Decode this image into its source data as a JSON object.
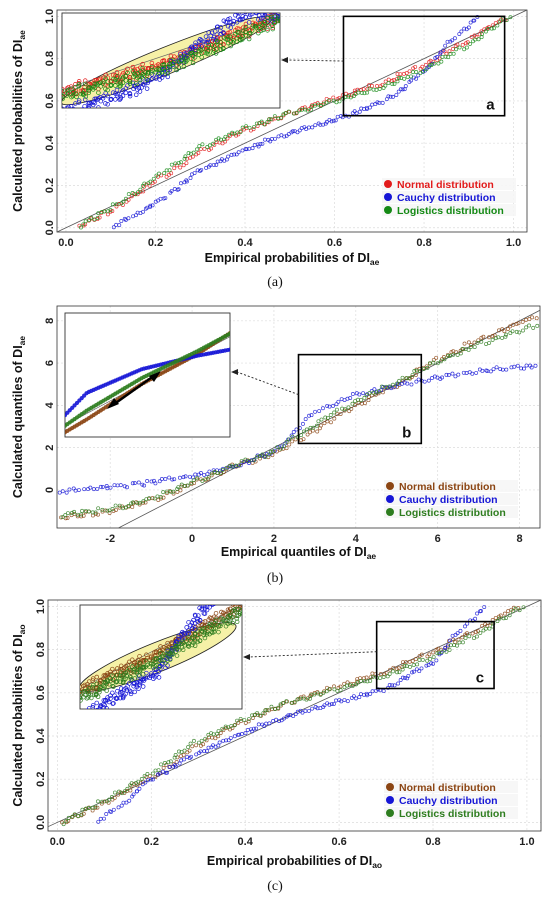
{
  "chart_data": [
    {
      "id": "a",
      "type": "scatter",
      "caption": "(a)",
      "xlabel_main": "Empirical probabilities of DI",
      "xlabel_sub": "ae",
      "ylabel_main": "Calculated probabilities of DI",
      "ylabel_sub": "ae",
      "xlim": [
        -0.02,
        1.03
      ],
      "ylim": [
        -0.02,
        1.03
      ],
      "xticks": [
        "0.0",
        "0.2",
        "0.4",
        "0.6",
        "0.8",
        "1.0"
      ],
      "yticks": [
        "0.0",
        "0.2",
        "0.4",
        "0.6",
        "0.8",
        "1.0"
      ],
      "reference_line": [
        [
          -0.02,
          -0.02
        ],
        [
          1.03,
          1.03
        ]
      ],
      "zoom_label": "a",
      "zoom_box": {
        "x": [
          0.62,
          0.98
        ],
        "y": [
          0.53,
          1.0
        ]
      },
      "grid": true,
      "legend_position": "bottom-right",
      "series": [
        {
          "name": "Normal distribution",
          "color": "#e21b1b",
          "x": [
            0.03,
            0.1,
            0.2,
            0.3,
            0.4,
            0.5,
            0.6,
            0.7,
            0.8,
            0.9,
            0.98
          ],
          "y": [
            0.01,
            0.08,
            0.22,
            0.36,
            0.46,
            0.54,
            0.61,
            0.68,
            0.77,
            0.89,
            0.99
          ]
        },
        {
          "name": "Cauchy distribution",
          "color": "#1616d6",
          "x": [
            0.11,
            0.2,
            0.3,
            0.4,
            0.5,
            0.6,
            0.7,
            0.75,
            0.8,
            0.85,
            0.92
          ],
          "y": [
            0.01,
            0.11,
            0.27,
            0.37,
            0.45,
            0.51,
            0.59,
            0.65,
            0.74,
            0.86,
            1.0
          ]
        },
        {
          "name": "Logistics distribution",
          "color": "#158a15",
          "x": [
            0.03,
            0.1,
            0.2,
            0.3,
            0.4,
            0.5,
            0.6,
            0.7,
            0.8,
            0.9,
            0.99
          ],
          "y": [
            0.01,
            0.09,
            0.24,
            0.38,
            0.47,
            0.54,
            0.6,
            0.66,
            0.75,
            0.87,
            1.0
          ]
        }
      ]
    },
    {
      "id": "b",
      "type": "scatter",
      "caption": "(b)",
      "xlabel_main": "Empirical quantiles of DI",
      "xlabel_sub": "ae",
      "ylabel_main": "Calculated quantiles of DI",
      "ylabel_sub": "ae",
      "xlim": [
        -3.3,
        8.5
      ],
      "ylim": [
        -1.8,
        8.7
      ],
      "xticks": [
        "-2",
        "0",
        "2",
        "4",
        "6",
        "8"
      ],
      "yticks": [
        "0",
        "2",
        "4",
        "6",
        "8"
      ],
      "reference_line": [
        [
          -1.8,
          -1.8
        ],
        [
          8.5,
          8.5
        ]
      ],
      "zoom_label": "b",
      "zoom_box": {
        "x": [
          2.6,
          5.6
        ],
        "y": [
          2.2,
          6.4
        ]
      },
      "grid": true,
      "legend_position": "bottom-right",
      "series": [
        {
          "name": "Normal distribution",
          "color": "#8b4513",
          "x": [
            -3.2,
            -2.0,
            -1.0,
            0,
            1.0,
            2.0,
            3.0,
            4.0,
            5.0,
            6.0,
            7.0,
            8.4
          ],
          "y": [
            -1.3,
            -1.0,
            -0.5,
            0.3,
            1.1,
            1.7,
            2.8,
            4.0,
            5.0,
            6.2,
            7.1,
            8.2
          ]
        },
        {
          "name": "Cauchy distribution",
          "color": "#1616d6",
          "x": [
            -3.2,
            -2.0,
            -1.0,
            0,
            1.0,
            2.0,
            3.0,
            4.0,
            5.0,
            6.0,
            7.0,
            8.4
          ],
          "y": [
            -0.05,
            0.1,
            0.35,
            0.65,
            1.1,
            1.8,
            3.7,
            4.5,
            4.95,
            5.3,
            5.6,
            5.9
          ]
        },
        {
          "name": "Logistics distribution",
          "color": "#2e7d1f",
          "x": [
            -3.2,
            -2.0,
            -1.0,
            0,
            1.0,
            2.0,
            3.0,
            4.0,
            5.0,
            6.0,
            7.0,
            8.4
          ],
          "y": [
            -1.2,
            -0.9,
            -0.4,
            0.35,
            1.15,
            1.8,
            3.1,
            4.2,
            5.1,
            6.1,
            6.9,
            7.8
          ]
        }
      ]
    },
    {
      "id": "c",
      "type": "scatter",
      "caption": "(c)",
      "xlabel_main": "Empirical probabilities of DI",
      "xlabel_sub": "ao",
      "ylabel_main": "Calculated probabilities of DI",
      "ylabel_sub": "ao",
      "xlim": [
        -0.02,
        1.03
      ],
      "ylim": [
        -0.04,
        1.03
      ],
      "xticks": [
        "0.0",
        "0.2",
        "0.4",
        "0.6",
        "0.8",
        "1.0"
      ],
      "yticks": [
        "0.0",
        "0.2",
        "0.4",
        "0.6",
        "0.8",
        "1.0"
      ],
      "reference_line": [
        [
          -0.02,
          -0.02
        ],
        [
          1.03,
          1.03
        ]
      ],
      "zoom_label": "c",
      "zoom_box": {
        "x": [
          0.68,
          0.93
        ],
        "y": [
          0.62,
          0.93
        ]
      },
      "grid": true,
      "legend_position": "bottom-right",
      "series": [
        {
          "name": "Normal distribution",
          "color": "#8b4513",
          "x": [
            0.01,
            0.1,
            0.2,
            0.3,
            0.4,
            0.5,
            0.6,
            0.7,
            0.8,
            0.9,
            0.98
          ],
          "y": [
            0.0,
            0.09,
            0.21,
            0.36,
            0.47,
            0.56,
            0.63,
            0.7,
            0.79,
            0.9,
            1.0
          ]
        },
        {
          "name": "Cauchy distribution",
          "color": "#1616d6",
          "x": [
            0.09,
            0.15,
            0.2,
            0.3,
            0.4,
            0.5,
            0.6,
            0.7,
            0.8,
            0.85,
            0.91
          ],
          "y": [
            0.01,
            0.1,
            0.2,
            0.32,
            0.42,
            0.5,
            0.56,
            0.62,
            0.74,
            0.87,
            1.0
          ]
        },
        {
          "name": "Logistics distribution",
          "color": "#2e7d1f",
          "x": [
            0.01,
            0.1,
            0.2,
            0.3,
            0.4,
            0.5,
            0.6,
            0.7,
            0.8,
            0.9,
            0.99
          ],
          "y": [
            0.0,
            0.1,
            0.23,
            0.38,
            0.48,
            0.56,
            0.62,
            0.68,
            0.77,
            0.88,
            1.0
          ]
        }
      ]
    }
  ]
}
